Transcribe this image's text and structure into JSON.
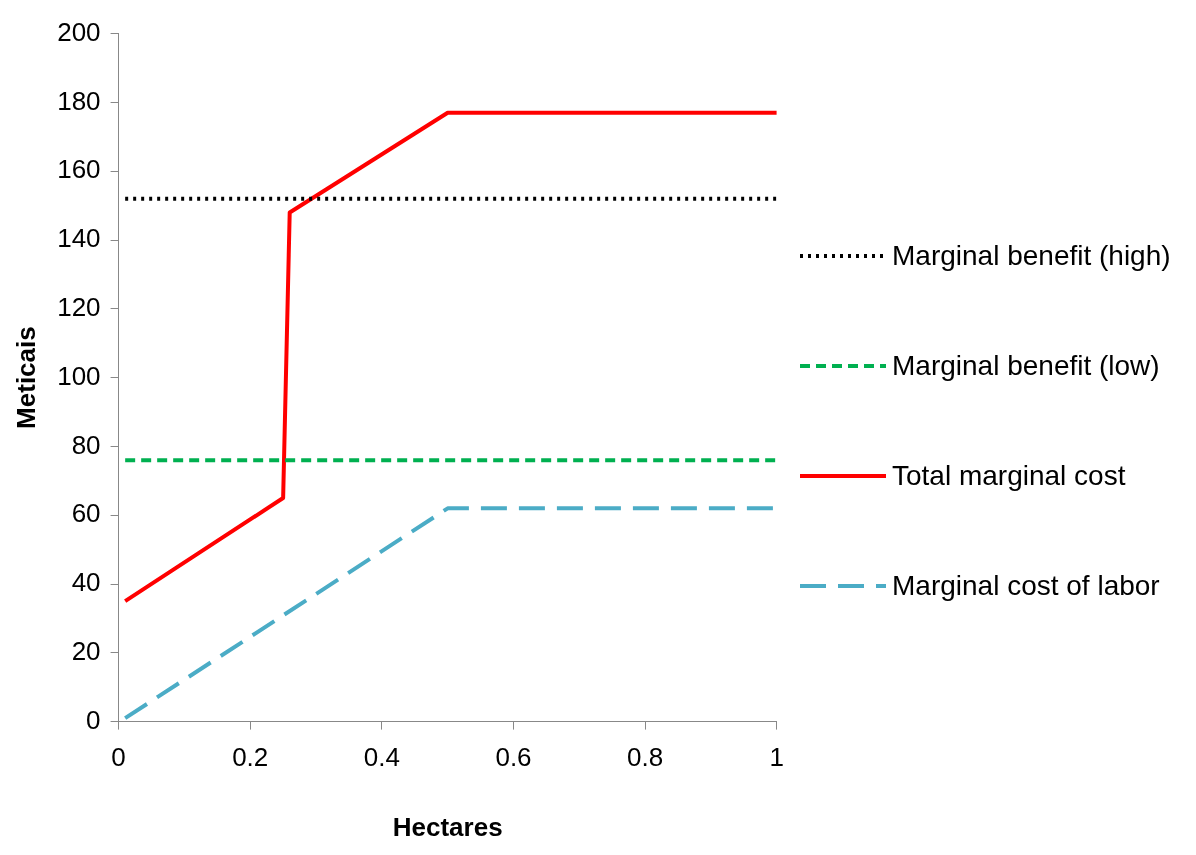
{
  "chart_data": {
    "type": "line",
    "xlabel": "Hectares",
    "ylabel": "Meticais",
    "xlim": [
      0,
      1
    ],
    "xticks": [
      0,
      0.2,
      0.4,
      0.6,
      0.8,
      1
    ],
    "ylim": [
      0,
      200
    ],
    "yticks": [
      0,
      20,
      40,
      60,
      80,
      100,
      120,
      140,
      160,
      180,
      200
    ],
    "grid": false,
    "legend": "right",
    "marker": "none",
    "series": [
      {
        "name": "Marginal benefit (high)",
        "color": "#000000",
        "line_style": "dotted",
        "x": [
          0.01,
          1
        ],
        "values": [
          152,
          152
        ]
      },
      {
        "name": "Marginal benefit (low)",
        "color": "#00b050",
        "line_style": "dashed",
        "x": [
          0.01,
          1
        ],
        "values": [
          76,
          76
        ]
      },
      {
        "name": "Total marginal cost",
        "color": "#ff0000",
        "line_style": "solid",
        "x": [
          0.01,
          0.25,
          0.26,
          0.5,
          1
        ],
        "values": [
          35,
          65,
          148,
          177,
          177
        ]
      },
      {
        "name": "Marginal cost of labor",
        "color": "#4bacc6",
        "line_style": "dashed",
        "x": [
          0.01,
          0.5,
          1
        ],
        "values": [
          1,
          62,
          62
        ]
      }
    ]
  }
}
